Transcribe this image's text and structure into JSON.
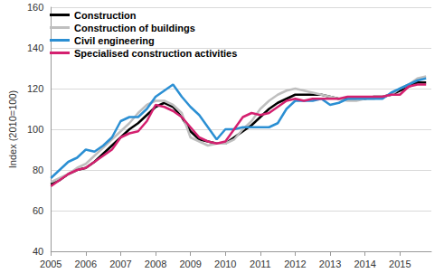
{
  "chart_data": {
    "type": "line",
    "y_label": "Index (2010=100)",
    "x": [
      2005,
      2005.25,
      2005.5,
      2005.75,
      2006,
      2006.25,
      2006.5,
      2006.75,
      2007,
      2007.25,
      2007.5,
      2007.75,
      2008,
      2008.25,
      2008.5,
      2008.75,
      2009,
      2009.25,
      2009.5,
      2009.75,
      2010,
      2010.25,
      2010.5,
      2010.75,
      2011,
      2011.25,
      2011.5,
      2011.75,
      2012,
      2012.25,
      2012.5,
      2012.75,
      2013,
      2013.25,
      2013.5,
      2013.75,
      2014,
      2014.25,
      2014.5,
      2014.75,
      2015,
      2015.25,
      2015.5,
      2015.75
    ],
    "series": [
      {
        "name": "Construction",
        "color": "#000000",
        "values": [
          73,
          75,
          78,
          80,
          81,
          84,
          88,
          92,
          96,
          100,
          103,
          107,
          111,
          113,
          111,
          106,
          99,
          95,
          94,
          93,
          93,
          96,
          99,
          102,
          106,
          110,
          113,
          115,
          117,
          117,
          117,
          117,
          116,
          115,
          115,
          115,
          115,
          116,
          116,
          117,
          119,
          121,
          123,
          123
        ]
      },
      {
        "name": "Construction of buildings",
        "color": "#bfbfbf",
        "values": [
          74,
          76,
          78,
          81,
          83,
          87,
          91,
          95,
          99,
          103,
          108,
          112,
          114,
          114,
          112,
          108,
          96,
          94,
          92,
          93,
          93,
          95,
          100,
          104,
          110,
          114,
          117,
          119,
          120,
          119,
          118,
          117,
          116,
          115,
          114,
          114,
          115,
          115,
          116,
          117,
          120,
          122,
          125,
          126
        ]
      },
      {
        "name": "Civil engineering",
        "color": "#2b8fd3",
        "values": [
          76,
          80,
          84,
          86,
          90,
          89,
          92,
          96,
          104,
          106,
          106,
          110,
          116,
          119,
          122,
          116,
          111,
          107,
          101,
          95,
          100,
          100,
          101,
          101,
          101,
          101,
          103,
          110,
          114,
          114,
          114,
          115,
          112,
          113,
          115,
          115,
          115,
          115,
          115,
          118,
          120,
          122,
          124,
          125
        ]
      },
      {
        "name": "Specialised construction activities",
        "color": "#d4206f",
        "values": [
          72,
          75,
          78,
          80,
          81,
          84,
          87,
          90,
          96,
          98,
          99,
          104,
          112,
          111,
          109,
          106,
          101,
          96,
          94,
          93,
          94,
          100,
          106,
          108,
          107,
          108,
          111,
          114,
          115,
          114,
          115,
          115,
          115,
          115,
          116,
          116,
          116,
          116,
          116,
          117,
          117,
          121,
          122,
          122
        ]
      }
    ],
    "xlim": [
      2005,
      2015.9
    ],
    "xticks": [
      2005,
      2006,
      2007,
      2008,
      2009,
      2010,
      2011,
      2012,
      2013,
      2014,
      2015
    ],
    "ylim": [
      40,
      160
    ],
    "yticks": [
      40,
      60,
      80,
      100,
      120,
      140,
      160
    ],
    "grid": true,
    "legend": "top-left"
  }
}
